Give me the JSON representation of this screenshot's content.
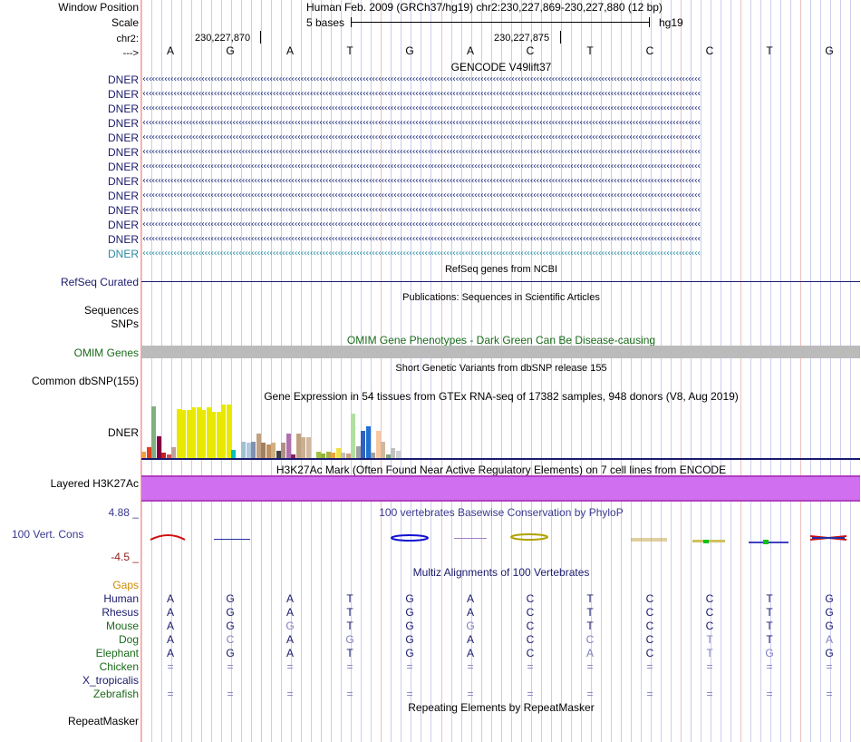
{
  "header": {
    "window_position_label": "Window Position",
    "scale_label": "Scale",
    "chrom_label": "chr2:",
    "strand_label": "--->",
    "assembly_text": "Human Feb. 2009 (GRCh37/hg19)   chr2:230,227,869-230,227,880 (12 bp)",
    "scale_text": "5 bases",
    "db_text": "hg19",
    "pos_left": "230,227,870",
    "pos_right": "230,227,875"
  },
  "bases": [
    "A",
    "G",
    "A",
    "T",
    "G",
    "A",
    "C",
    "T",
    "C",
    "C",
    "T",
    "G"
  ],
  "gencode": {
    "title": "GENCODE V49lift37",
    "gene_labels": [
      "DNER",
      "DNER",
      "DNER",
      "DNER",
      "DNER",
      "DNER",
      "DNER",
      "DNER",
      "DNER",
      "DNER",
      "DNER",
      "DNER",
      "DNER"
    ]
  },
  "refseq": {
    "label": "RefSeq Curated",
    "title": "RefSeq genes from NCBI"
  },
  "publications": {
    "title": "Publications: Sequences in Scientific Articles",
    "sequences_label": "Sequences",
    "snps_label": "SNPs"
  },
  "omim": {
    "label": "OMIM Genes",
    "title": "OMIM Gene Phenotypes - Dark Green Can Be Disease-causing"
  },
  "dbsnp": {
    "label": "Common dbSNP(155)",
    "title": "Short Genetic Variants from dbSNP release 155"
  },
  "gtex": {
    "title": "Gene Expression in 54 tissues from GTEx RNA-seq of 17382 samples, 948 donors (V8, Aug 2019)",
    "label": "DNER",
    "tissue_levels": [
      0.12,
      0.2,
      0.95,
      0.4,
      0.1,
      0.06,
      0.2,
      0.9,
      0.88,
      0.88,
      0.93,
      0.93,
      0.88,
      0.93,
      0.85,
      0.85,
      0.98,
      0.98,
      0.15,
      0.0,
      0.3,
      0.28,
      0.3,
      0.45,
      0.28,
      0.25,
      0.28,
      0.13,
      0.28,
      0.45,
      0.06,
      0.45,
      0.38,
      0.38,
      0.0,
      0.12,
      0.08,
      0.12,
      0.1,
      0.18,
      0.1,
      0.08,
      0.82,
      0.22,
      0.5,
      0.58,
      0.1,
      0.5,
      0.3,
      0.07,
      0.18,
      0.13,
      0.0,
      0.0
    ],
    "tissue_colors": [
      "#f0a040",
      "#e04020",
      "#7fb07f",
      "#800040",
      "#c02020",
      "#d05050",
      "#c0a0a0",
      "#e8e800",
      "#e8e800",
      "#e8e800",
      "#e8e800",
      "#e8e800",
      "#e8e800",
      "#e8e800",
      "#e8e800",
      "#e8e800",
      "#e8e800",
      "#e8e800",
      "#00c0c0",
      "#ffffff",
      "#a0c0d0",
      "#b0c8e0",
      "#8090b0",
      "#c0a080",
      "#a08060",
      "#c09060",
      "#d0b080",
      "#404040",
      "#b09080",
      "#b070b0",
      "#802060",
      "#c0a080",
      "#c8b090",
      "#d0b8a0",
      "#ffffff",
      "#a0c040",
      "#90b040",
      "#b0b040",
      "#f0a040",
      "#f0e040",
      "#c0c0c0",
      "#d0a080",
      "#b0e0a0",
      "#a0a0a0",
      "#3060c0",
      "#2070d0",
      "#a0a0a0",
      "#f8c8a0",
      "#d0b8a0",
      "#80a080",
      "#c0c0c0",
      "#d0d0d0",
      "#ffffff",
      "#ffffff"
    ]
  },
  "h3k27ac": {
    "label": "Layered H3K27Ac",
    "title": "H3K27Ac Mark (Often Found Near Active Regulatory Elements) on 7 cell lines from ENCODE"
  },
  "phylop": {
    "label": "100 Vert. Cons",
    "max": "4.88 _",
    "min": "-4.5 _",
    "title": "100 vertebrates Basewise Conservation by PhyloP"
  },
  "multiz": {
    "title": "Multiz Alignments of 100 Vertebrates",
    "gaps_label": "Gaps",
    "species": [
      {
        "name": "Human",
        "bases": [
          "A",
          "G",
          "A",
          "T",
          "G",
          "A",
          "C",
          "T",
          "C",
          "C",
          "T",
          "G"
        ]
      },
      {
        "name": "Rhesus",
        "bases": [
          "A",
          "G",
          "A",
          "T",
          "G",
          "A",
          "C",
          "T",
          "C",
          "C",
          "T",
          "G"
        ]
      },
      {
        "name": "Mouse",
        "bases": [
          "A",
          "G",
          "G",
          "T",
          "G",
          "G",
          "C",
          "T",
          "C",
          "C",
          "T",
          "G"
        ]
      },
      {
        "name": "Dog",
        "bases": [
          "A",
          "C",
          "A",
          "G",
          "G",
          "A",
          "C",
          "C",
          "C",
          "T",
          "T",
          "A"
        ]
      },
      {
        "name": "Elephant",
        "bases": [
          "A",
          "G",
          "A",
          "T",
          "G",
          "A",
          "C",
          "A",
          "C",
          "T",
          "G",
          "G"
        ]
      },
      {
        "name": "Chicken",
        "bases": [
          "=",
          "=",
          "=",
          "=",
          "=",
          "=",
          "=",
          "=",
          "=",
          "=",
          "=",
          "="
        ]
      },
      {
        "name": "X_tropicalis",
        "bases": [
          "",
          "",
          "",
          "",
          "",
          "",
          "",
          "",
          "",
          "",
          "",
          ""
        ]
      },
      {
        "name": "Zebrafish",
        "bases": [
          "=",
          "=",
          "=",
          "=",
          "=",
          "=",
          "=",
          "=",
          "=",
          "=",
          "=",
          "="
        ]
      }
    ]
  },
  "repeatmasker": {
    "label": "RepeatMasker",
    "title": "Repeating Elements by RepeatMasker"
  },
  "colors": {
    "navy": "#1a1a6e",
    "omim_green": "#1a6a1a",
    "gaps": "#d08a00",
    "h3k27ac": "#d070f0",
    "phylop_label": "#3a3a90",
    "phylop_min": "#902020",
    "grid_line": "#ccccee",
    "grid_line_alt": "#f0c0c0"
  }
}
